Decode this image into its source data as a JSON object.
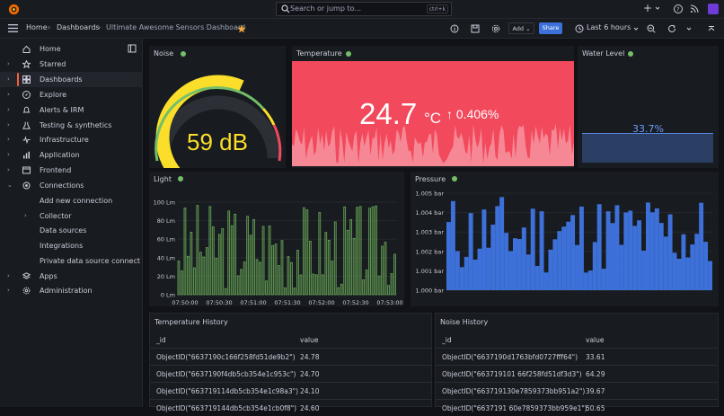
{
  "topbar": {
    "search_placeholder": "Search or jump to...",
    "search_shortcut": "ctrl+k",
    "plus_label": "+"
  },
  "breadcrumb": {
    "home": "Home",
    "dashboards": "Dashboards",
    "current": "Ultimate Awesome Sensors Dashboard"
  },
  "toolbar": {
    "add_label": "Add",
    "share_label": "Share",
    "time_range": "Last 6 hours"
  },
  "sidebar": {
    "items": [
      {
        "label": "Home",
        "icon": "home-icon",
        "chevron": false
      },
      {
        "label": "Starred",
        "icon": "star-icon",
        "chevron": true
      },
      {
        "label": "Dashboards",
        "icon": "dashboards-icon",
        "chevron": true,
        "active": true
      },
      {
        "label": "Explore",
        "icon": "compass-icon",
        "chevron": true
      },
      {
        "label": "Alerts & IRM",
        "icon": "bell-icon",
        "chevron": true
      },
      {
        "label": "Testing & synthetics",
        "icon": "flask-icon",
        "chevron": true
      },
      {
        "label": "Infrastructure",
        "icon": "pulse-icon",
        "chevron": true
      },
      {
        "label": "Application",
        "icon": "bar-chart-icon",
        "chevron": true
      },
      {
        "label": "Frontend",
        "icon": "frontend-icon",
        "chevron": true
      },
      {
        "label": "Connections",
        "icon": "plug-icon",
        "chevron": true,
        "expanded": true
      },
      {
        "label": "Add new connection",
        "sub": true
      },
      {
        "label": "Collector",
        "sub": true,
        "chevron": true
      },
      {
        "label": "Data sources",
        "sub": true
      },
      {
        "label": "Integrations",
        "sub": true
      },
      {
        "label": "Private data source connect",
        "sub": true
      },
      {
        "label": "Apps",
        "icon": "apps-icon",
        "chevron": true
      },
      {
        "label": "Administration",
        "icon": "gear-icon",
        "chevron": true
      }
    ]
  },
  "panels": {
    "noise": {
      "title": "Noise",
      "value": "59 dB",
      "fraction": 0.59
    },
    "temperature": {
      "title": "Temperature",
      "value": "24.7",
      "unit": "°C",
      "change": "↑ 0.406%"
    },
    "water": {
      "title": "Water Level",
      "value": "33.7%"
    },
    "light": {
      "title": "Light"
    },
    "pressure": {
      "title": "Pressure"
    }
  },
  "chart_data": [
    {
      "type": "bar",
      "title": "Light",
      "y_ticks": [
        "100 Lm",
        "80 Lm",
        "60 Lm",
        "40 Lm",
        "20 Lm",
        "0 Lm"
      ],
      "x_ticks": [
        "07:50:00",
        "07:50:30",
        "07:51:00",
        "07:51:30",
        "07:52:00",
        "07:52:30",
        "07:53:00"
      ],
      "ylim": [
        0,
        100
      ],
      "color": "#5f9e4d"
    },
    {
      "type": "bar",
      "title": "Pressure",
      "y_ticks": [
        "1.005 bar",
        "1.004 bar",
        "1.003 bar",
        "1.002 bar",
        "1.001 bar",
        "1.000 bar"
      ],
      "ylim": [
        1.0,
        1.005
      ],
      "color": "#3d71d9"
    }
  ],
  "tables": {
    "temp": {
      "title": "Temperature History",
      "headers": [
        "_id",
        "value"
      ],
      "rows": [
        [
          "ObjectID(\"6637190c166f258fd51de9b2\")",
          "24.78"
        ],
        [
          "ObjectID(\"6637190f4db5cb354e1c953c\")",
          "24.70"
        ],
        [
          "ObjectID(\"663719114db5cb354e1c98a3\")",
          "24.10"
        ],
        [
          "ObjectID(\"663719144db5cb354e1cb0f8\")",
          "24.60"
        ]
      ]
    },
    "noise": {
      "title": "Noise History",
      "headers": [
        "_id",
        "value"
      ],
      "rows": [
        [
          "ObjectID(\"6637190d1763bfd0727fff64\")",
          "33.61"
        ],
        [
          "ObjectID(\"663719101 66f258fd51df3d3\")",
          "64.29"
        ],
        [
          "ObjectID(\"663719130e7859373bb951a2\")",
          "39.67"
        ],
        [
          "ObjectID(\"6637191 60e7859373bb959e1\")",
          "50.65"
        ]
      ]
    }
  },
  "colors": {
    "accent": "#f55f3e",
    "green": "#73bf69",
    "temp_bg": "#f2495c",
    "water_fill": "#3d71d9"
  }
}
